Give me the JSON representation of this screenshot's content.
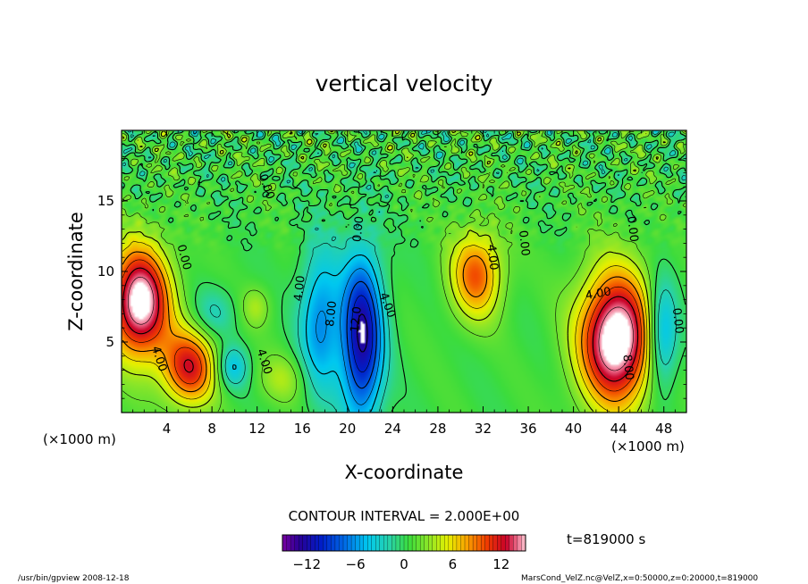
{
  "chart_data": {
    "type": "heatmap",
    "title": "vertical velocity",
    "xlabel": "X-coordinate",
    "ylabel": "Z-coordinate",
    "x_unit_left": "(×1000 m)",
    "x_unit_right": "(×1000 m)",
    "xlim": [
      0,
      50
    ],
    "ylim": [
      0,
      20
    ],
    "x_ticks": [
      "4",
      "8",
      "12",
      "16",
      "20",
      "24",
      "28",
      "32",
      "36",
      "40",
      "44",
      "48"
    ],
    "y_ticks": [
      "5",
      "10",
      "15"
    ],
    "contour_interval_text": "CONTOUR INTERVAL = 2.000E+00",
    "colorbar_range": [
      -15,
      15
    ],
    "colorbar_ticks": [
      "−12",
      "−6",
      "0",
      "6",
      "12"
    ],
    "time_label": "t=819000 s",
    "contour_labels": [
      {
        "text": "4.00",
        "x": 3.3,
        "z": 3.8,
        "rot": 72
      },
      {
        "text": "4.00",
        "x": 12.6,
        "z": 3.6,
        "rot": 72
      },
      {
        "text": "4.00",
        "x": 15.8,
        "z": 8.8,
        "rot": -84
      },
      {
        "text": "8.00",
        "x": 18.6,
        "z": 7.0,
        "rot": -84
      },
      {
        "text": "12.0",
        "x": 20.8,
        "z": 6.6,
        "rot": -84
      },
      {
        "text": "4.00",
        "x": 23.5,
        "z": 7.6,
        "rot": 70
      },
      {
        "text": "0.00",
        "x": 21.0,
        "z": 13.0,
        "rot": -84
      },
      {
        "text": "4.00",
        "x": 32.8,
        "z": 11.0,
        "rot": 84
      },
      {
        "text": "0.00",
        "x": 35.6,
        "z": 12.0,
        "rot": 84
      },
      {
        "text": "0.00",
        "x": 45.2,
        "z": 13.0,
        "rot": 84
      },
      {
        "text": "4.00",
        "x": 42.2,
        "z": 8.4,
        "rot": -10
      },
      {
        "text": "8.00",
        "x": 44.8,
        "z": 3.2,
        "rot": 84
      },
      {
        "text": "0.00",
        "x": 49.2,
        "z": 6.5,
        "rot": 84
      },
      {
        "text": "0.00",
        "x": 5.5,
        "z": 11.0,
        "rot": 75
      },
      {
        "text": "0.00",
        "x": 12.8,
        "z": 16.0,
        "rot": 70
      }
    ],
    "features": [
      {
        "sign": "up",
        "x": 1.6,
        "z": 7.8,
        "sx": 1.9,
        "sz": 2.8,
        "amp": 16
      },
      {
        "sign": "up",
        "x": 6.0,
        "z": 3.2,
        "sx": 1.7,
        "sz": 1.9,
        "amp": 11
      },
      {
        "sign": "up",
        "x": 31.4,
        "z": 9.8,
        "sx": 1.6,
        "sz": 2.2,
        "amp": 9
      },
      {
        "sign": "up",
        "x": 43.8,
        "z": 5.2,
        "sx": 2.3,
        "sz": 3.3,
        "amp": 17
      },
      {
        "sign": "down",
        "x": 9.8,
        "z": 3.2,
        "sx": 1.0,
        "sz": 1.1,
        "amp": -5
      },
      {
        "sign": "down",
        "x": 8.2,
        "z": 7.0,
        "sx": 1.4,
        "sz": 1.3,
        "amp": -3
      },
      {
        "sign": "down",
        "x": 17.6,
        "z": 6.5,
        "sx": 1.3,
        "sz": 3.6,
        "amp": -7
      },
      {
        "sign": "down",
        "x": 21.3,
        "z": 5.3,
        "sx": 1.3,
        "sz": 4.2,
        "amp": -13
      },
      {
        "sign": "down",
        "x": 47.8,
        "z": 5.5,
        "sx": 1.0,
        "sz": 2.7,
        "amp": -8
      },
      {
        "sign": "up",
        "x": 11.9,
        "z": 7.5,
        "sx": 0.9,
        "sz": 1.0,
        "amp": 3
      },
      {
        "sign": "up",
        "x": 14.2,
        "z": 2.4,
        "sx": 1.5,
        "sz": 1.2,
        "amp": 3
      }
    ]
  },
  "footer": {
    "left": "/usr/bin/gpview   2008-12-18",
    "right": "MarsCond_VelZ.nc@VelZ,x=0:50000,z=0:20000,t=819000"
  }
}
